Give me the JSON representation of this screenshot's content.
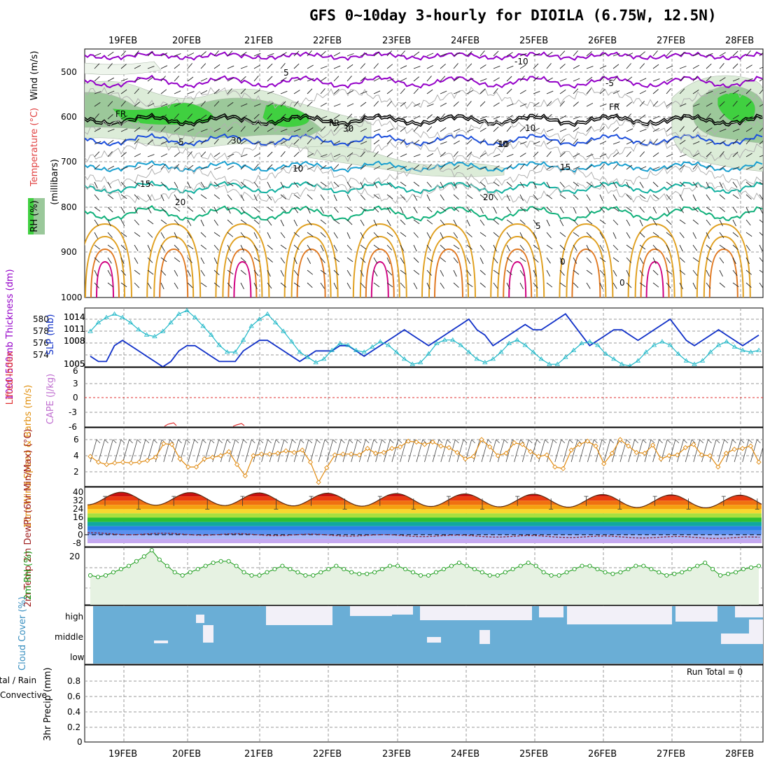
{
  "title": "GFS 0~10day 3-hourly for DIOILA (6.75W, 12.5N)",
  "dates": [
    "19FEB",
    "20FEB",
    "21FEB",
    "22FEB",
    "23FEB",
    "24FEB",
    "25FEB",
    "26FEB",
    "27FEB",
    "28FEB"
  ],
  "colors": {
    "purple": "#9400c8",
    "blue": "#1e50dc",
    "cyan": "#1aa0d0",
    "teal": "#13b0a0",
    "green_iso": "#10b07a",
    "orange": "#e0a020",
    "magenta": "#d00080",
    "rh_fill_light": "#dcecd8",
    "rh_fill_mid": "#9cc89a",
    "rh_fill_bright": "#40d040",
    "cloud": "#6aaed6",
    "rh2m_fill": "#e6f2e2",
    "rh2m_line": "#1a9c1a",
    "wind_line": "#e08a10",
    "slp_line": "#1030c8",
    "thick_line": "#20b8c8"
  },
  "panels": {
    "upper_air": {
      "ylabel_wind": "Wind (m/s)",
      "ylabel_temp": "Temperature (°C)",
      "ylabel_rh": "RH (%)",
      "ylabel_units": "(millibars)",
      "ticks": [
        "500",
        "600",
        "700",
        "800",
        "900",
        "1000"
      ],
      "contour_labels": [
        "-10",
        "-5",
        "5",
        "FR",
        "FR",
        "FR",
        "5",
        "10",
        "10",
        "15",
        "15",
        "20",
        "20",
        "5",
        "10",
        "30",
        "30",
        "10",
        "0",
        "0"
      ]
    },
    "slp": {
      "ylabel_thick": "1000-500mb Thickness (dm)",
      "ylabel_slp": "SLP (mb)",
      "left_ticks": [
        "580",
        "578",
        "576",
        "574"
      ],
      "right_ticks": [
        "1014",
        "1011",
        "1008",
        "1005"
      ]
    },
    "cape": {
      "ylabel_li": "Lifted Index",
      "ylabel_cape": "CAPE (J/kg)",
      "ticks": [
        "6",
        "3",
        "0",
        "-3",
        "-6"
      ]
    },
    "wind10": {
      "ylabel": "10m Wind Speed & Barbs (m/s)",
      "ticks": [
        "6",
        "4",
        "2"
      ]
    },
    "temp": {
      "ylabel": "2m Temp 2m DewPt (6hr Min/Max) (°C)",
      "ticks": [
        "40",
        "32",
        "24",
        "16",
        "8",
        "0",
        "-8"
      ]
    },
    "rh2m": {
      "ylabel": "2m RH (%)",
      "ticks": [
        "20"
      ]
    },
    "cloud": {
      "ylabel": "Cloud Cover (%)",
      "levels": [
        "high",
        "middle",
        "low"
      ]
    },
    "precip": {
      "ylabel": "3hr Precip (mm)",
      "legend_total": "Total / Rain",
      "legend_conv": "Convective",
      "run_total": "Run Total = 0",
      "ticks": [
        "0.8",
        "0.6",
        "0.4",
        "0.2",
        "0"
      ]
    }
  },
  "chart_data": [
    {
      "type": "line",
      "title": "1000-500mb Thickness (dm) / SLP (mb)",
      "series": [
        {
          "name": "SLP (mb)",
          "axis": "right",
          "values": [
            1007,
            1006,
            1006,
            1009,
            1010,
            1009,
            1008,
            1007,
            1006,
            1005,
            1006,
            1008,
            1009,
            1009,
            1008,
            1007,
            1006,
            1006,
            1006,
            1008,
            1009,
            1010,
            1010,
            1009,
            1008,
            1007,
            1006,
            1007,
            1008,
            1008,
            1008,
            1009,
            1009,
            1008,
            1007,
            1008,
            1009,
            1010,
            1011,
            1012,
            1011,
            1010,
            1009,
            1010,
            1011,
            1012,
            1013,
            1014,
            1012,
            1011,
            1009,
            1010,
            1011,
            1012,
            1013,
            1012,
            1012,
            1013,
            1014,
            1015,
            1013,
            1011,
            1009,
            1010,
            1011,
            1012,
            1012,
            1011,
            1010,
            1011,
            1012,
            1013,
            1014,
            1012,
            1010,
            1009,
            1010,
            1011,
            1012,
            1011,
            1010,
            1009,
            1010,
            1011
          ]
        },
        {
          "name": "Thickness (dm)",
          "axis": "left",
          "values": [
            578.6,
            579.6,
            580.2,
            580.6,
            580.2,
            579.6,
            578.8,
            578.2,
            578.0,
            578.6,
            579.6,
            580.6,
            581.0,
            580.2,
            579.2,
            578.2,
            577.0,
            576.2,
            576.2,
            577.6,
            579.2,
            580.0,
            580.6,
            579.6,
            578.6,
            577.4,
            576.2,
            575.6,
            575.0,
            575.4,
            576.4,
            577.2,
            577.0,
            576.4,
            576.2,
            576.8,
            577.4,
            577.0,
            576.2,
            575.4,
            574.8,
            575.0,
            576.0,
            577.2,
            577.6,
            577.6,
            577.0,
            576.2,
            575.4,
            575.0,
            575.4,
            576.2,
            577.2,
            577.6,
            577.0,
            576.2,
            575.4,
            574.8,
            574.8,
            575.6,
            576.4,
            577.2,
            577.4,
            577.0,
            576.0,
            575.4,
            574.8,
            574.6,
            575.2,
            576.2,
            577.0,
            577.4,
            577.0,
            576.0,
            575.2,
            574.8,
            575.2,
            576.2,
            577.0,
            577.4,
            576.8,
            576.4,
            576.2,
            576.4
          ]
        }
      ]
    },
    {
      "type": "line",
      "title": "10m Wind Speed (m/s)",
      "series": [
        {
          "name": "10m Wind Speed",
          "values": [
            3.9,
            3.2,
            2.9,
            3.1,
            3.2,
            3.1,
            3.2,
            3.4,
            3.8,
            5.5,
            5.4,
            3.6,
            2.6,
            2.6,
            3.6,
            3.8,
            4.0,
            4.5,
            2.9,
            1.5,
            4.0,
            4.2,
            4.2,
            4.3,
            4.6,
            4.4,
            4.7,
            3.2,
            0.7,
            2.5,
            4.1,
            4.2,
            4.2,
            4.1,
            4.9,
            4.3,
            4.4,
            4.9,
            5.1,
            5.8,
            5.7,
            5.4,
            5.7,
            5.2,
            5.0,
            4.4,
            3.6,
            3.9,
            6.0,
            5.1,
            4.0,
            4.3,
            5.6,
            5.4,
            4.5,
            3.9,
            4.1,
            2.6,
            2.4,
            4.7,
            5.4,
            5.8,
            5.2,
            3.0,
            4.3,
            6.0,
            5.2,
            4.4,
            4.3,
            5.3,
            3.6,
            4.0,
            4.1,
            5.0,
            5.4,
            4.1,
            4.0,
            2.6,
            4.3,
            4.8,
            4.9,
            5.2,
            3.2
          ]
        }
      ]
    },
    {
      "type": "area",
      "title": "2m RH (%)",
      "series": [
        {
          "name": "2m RH",
          "values": [
            14,
            13.5,
            14,
            15,
            16,
            17,
            18.5,
            20,
            22,
            19,
            17,
            15,
            14,
            15,
            16,
            17,
            18,
            18.5,
            18.5,
            17,
            15,
            14,
            14,
            15,
            16,
            17,
            16,
            15,
            14,
            14,
            15,
            16,
            17,
            16,
            15,
            14.5,
            14.5,
            15,
            16,
            17,
            17,
            16,
            15,
            14,
            14,
            15,
            16,
            17,
            18,
            17,
            16,
            15,
            14,
            14,
            15,
            16,
            17,
            18,
            17,
            15,
            14,
            14,
            15,
            16,
            17,
            17,
            16,
            15,
            14.5,
            15,
            16,
            17,
            17,
            16,
            15,
            14,
            14.5,
            15,
            16,
            17,
            18,
            16,
            14,
            14.5,
            15,
            16,
            16.5,
            17
          ]
        }
      ]
    },
    {
      "type": "bar",
      "title": "3hr Precip (mm)",
      "ylim": [
        0,
        0.9
      ],
      "series": [
        {
          "name": "Total / Rain",
          "values": [
            0
          ]
        },
        {
          "name": "Convective",
          "values": [
            0
          ]
        }
      ]
    }
  ]
}
